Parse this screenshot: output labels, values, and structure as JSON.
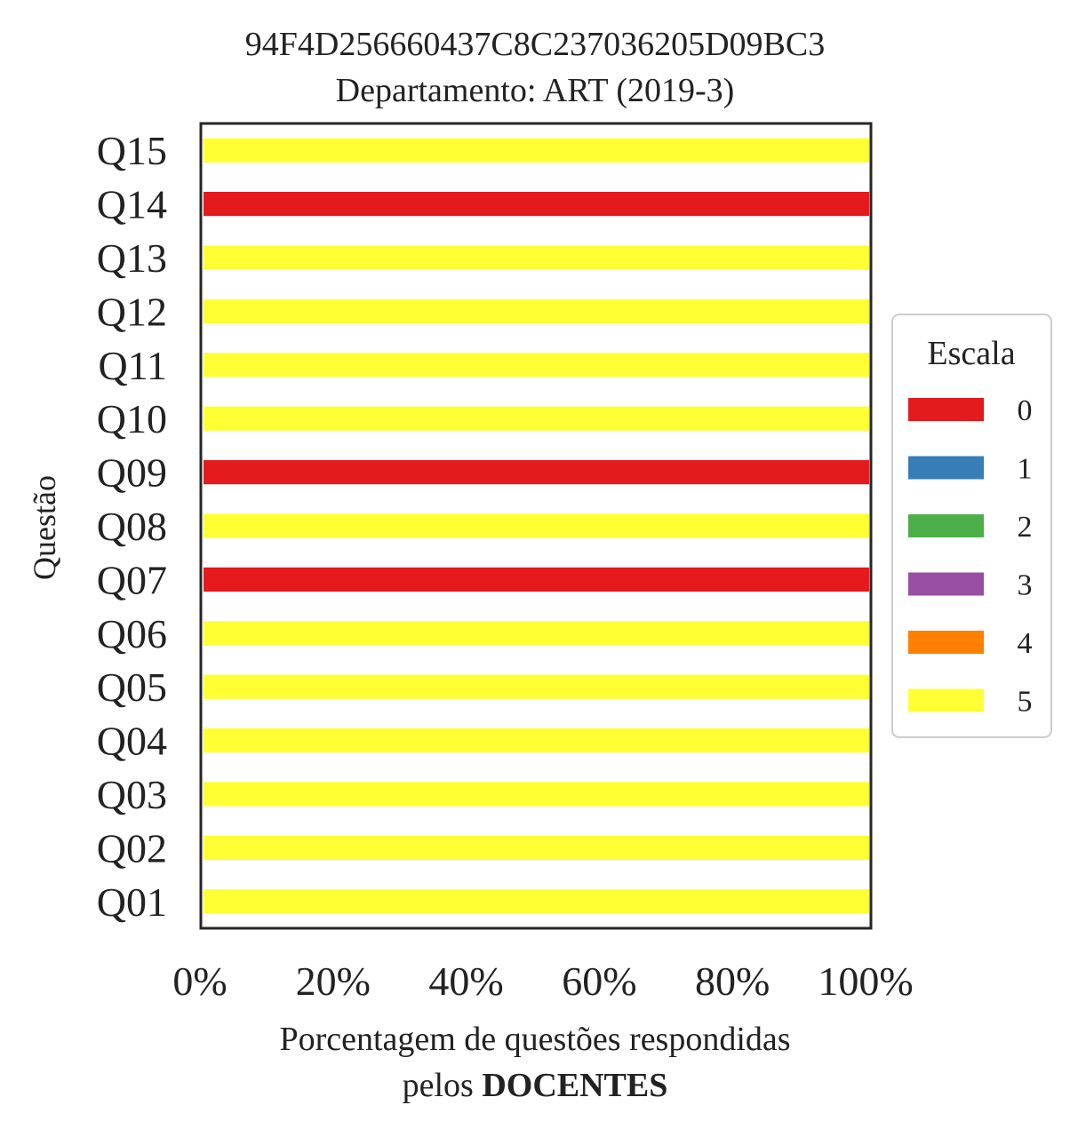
{
  "chart_data": {
    "type": "bar",
    "orientation": "horizontal",
    "stacked": true,
    "title": [
      "94F4D256660437C8C237036205D09BC3",
      "Departamento: ART (2019-3)"
    ],
    "ylabel": "Questão",
    "xlabel": {
      "line1": "Porcentagem de questões respondidas",
      "line2_prefix": "pelos ",
      "line2_bold": "DOCENTES"
    },
    "categories": [
      "Q01",
      "Q02",
      "Q03",
      "Q04",
      "Q05",
      "Q06",
      "Q07",
      "Q08",
      "Q09",
      "Q10",
      "Q11",
      "Q12",
      "Q13",
      "Q14",
      "Q15"
    ],
    "xticks": [
      "0%",
      "20%",
      "40%",
      "60%",
      "80%",
      "100%"
    ],
    "xlim": [
      0,
      100
    ],
    "grid": false,
    "legend": {
      "title": "Escala",
      "placement": "right",
      "entries": [
        {
          "label": "0",
          "color": "#e41a1c"
        },
        {
          "label": "1",
          "color": "#377eb8"
        },
        {
          "label": "2",
          "color": "#4daf4a"
        },
        {
          "label": "3",
          "color": "#984ea3"
        },
        {
          "label": "4",
          "color": "#ff7f00"
        },
        {
          "label": "5",
          "color": "#ffff33"
        }
      ]
    },
    "series": [
      {
        "name": "0",
        "color": "#e41a1c",
        "values": [
          0,
          0,
          0,
          0,
          0,
          0,
          100,
          0,
          100,
          0,
          0,
          0,
          0,
          100,
          0
        ]
      },
      {
        "name": "1",
        "color": "#377eb8",
        "values": [
          0,
          0,
          0,
          0,
          0,
          0,
          0,
          0,
          0,
          0,
          0,
          0,
          0,
          0,
          0
        ]
      },
      {
        "name": "2",
        "color": "#4daf4a",
        "values": [
          0,
          0,
          0,
          0,
          0,
          0,
          0,
          0,
          0,
          0,
          0,
          0,
          0,
          0,
          0
        ]
      },
      {
        "name": "3",
        "color": "#984ea3",
        "values": [
          0,
          0,
          0,
          0,
          0,
          0,
          0,
          0,
          0,
          0,
          0,
          0,
          0,
          0,
          0
        ]
      },
      {
        "name": "4",
        "color": "#ff7f00",
        "values": [
          0,
          0,
          0,
          0,
          0,
          0,
          0,
          0,
          0,
          0,
          0,
          0,
          0,
          0,
          0
        ]
      },
      {
        "name": "5",
        "color": "#ffff33",
        "values": [
          100,
          100,
          100,
          100,
          100,
          100,
          0,
          100,
          0,
          100,
          100,
          100,
          100,
          0,
          100
        ]
      }
    ]
  }
}
